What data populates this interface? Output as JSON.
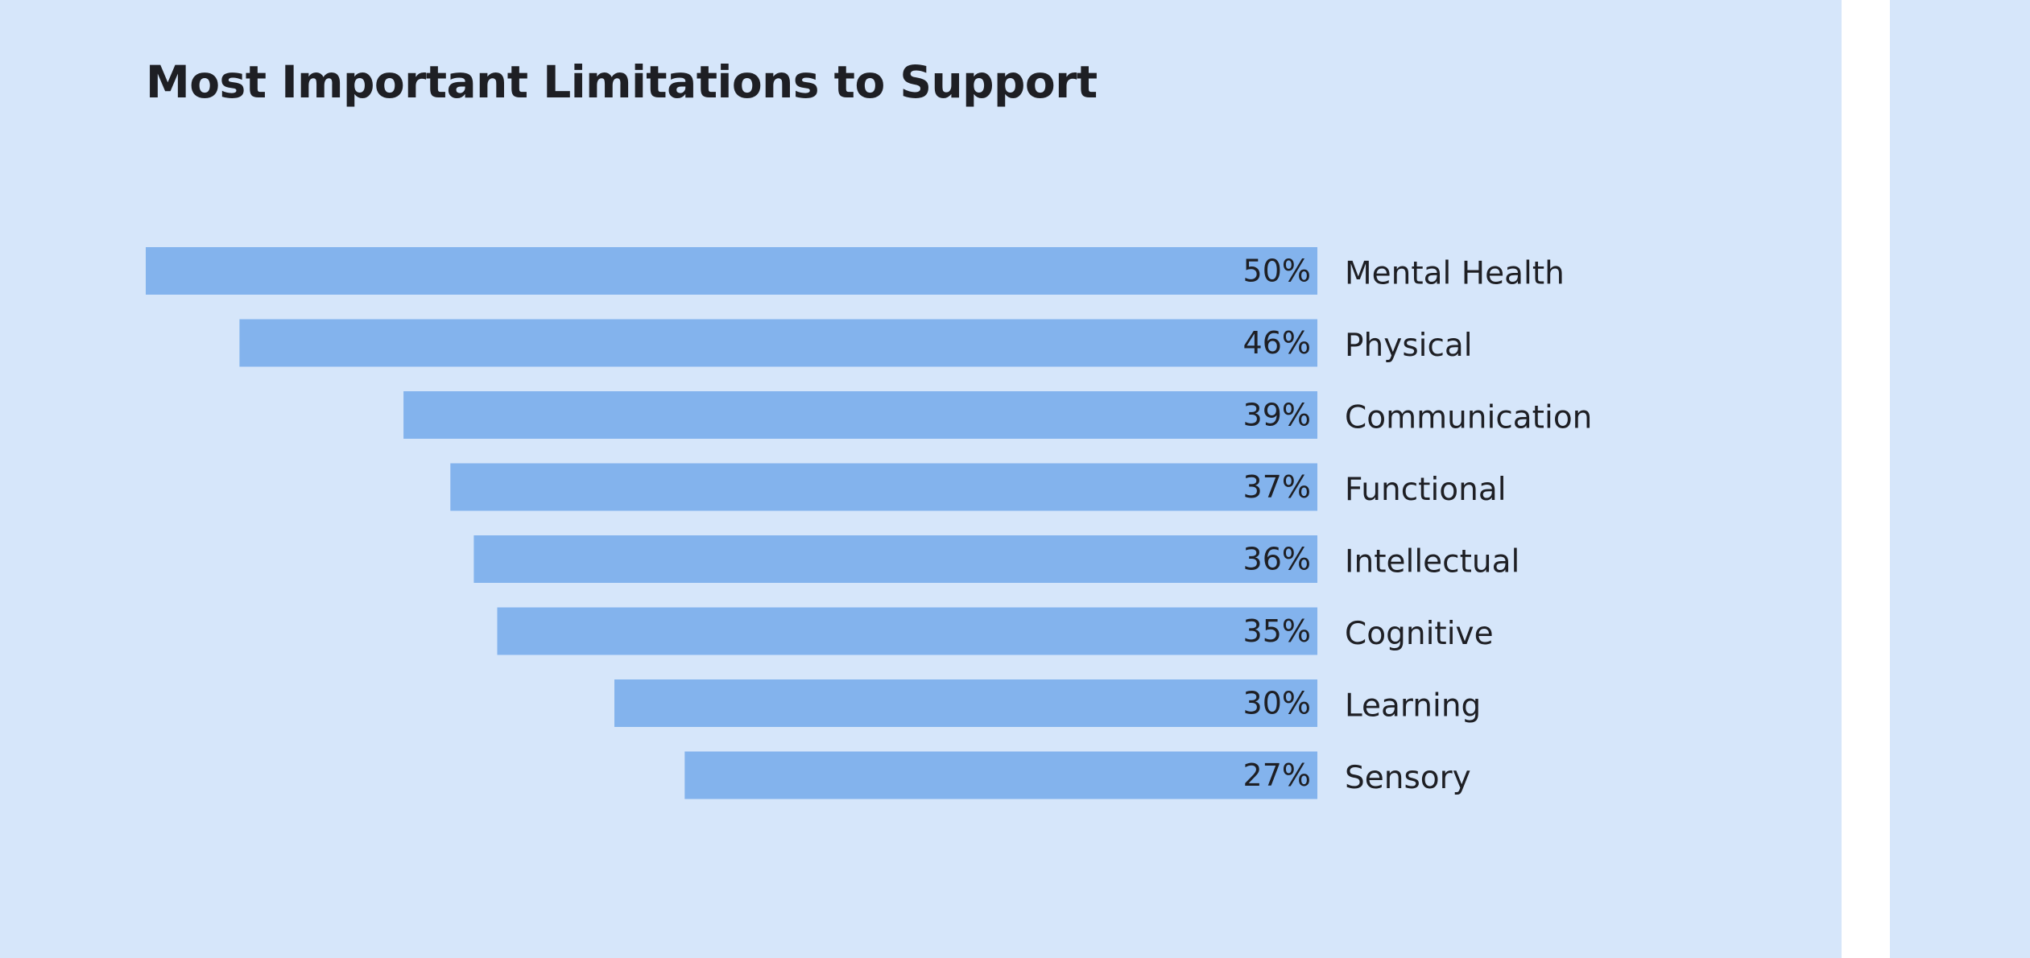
{
  "page": {
    "title": "Most Important Limitations to Support"
  },
  "colors": {
    "background": "#d6e6fa",
    "bar": "#83b3ed",
    "text": "#1e1f24"
  },
  "chart_data": {
    "type": "bar",
    "orientation": "horizontal",
    "title": "Most Important Limitations to Support",
    "xlabel": "",
    "ylabel": "",
    "unit": "%",
    "xlim": [
      0,
      50
    ],
    "grid": false,
    "legend": "none",
    "categories": [
      "Mental Health",
      "Physical",
      "Communication",
      "Functional",
      "Intellectual",
      "Cognitive",
      "Learning",
      "Sensory"
    ],
    "values": [
      50,
      46,
      39,
      37,
      36,
      35,
      30,
      27
    ],
    "value_labels": [
      "50%",
      "46%",
      "39%",
      "37%",
      "36%",
      "35%",
      "30%",
      "27%"
    ]
  }
}
